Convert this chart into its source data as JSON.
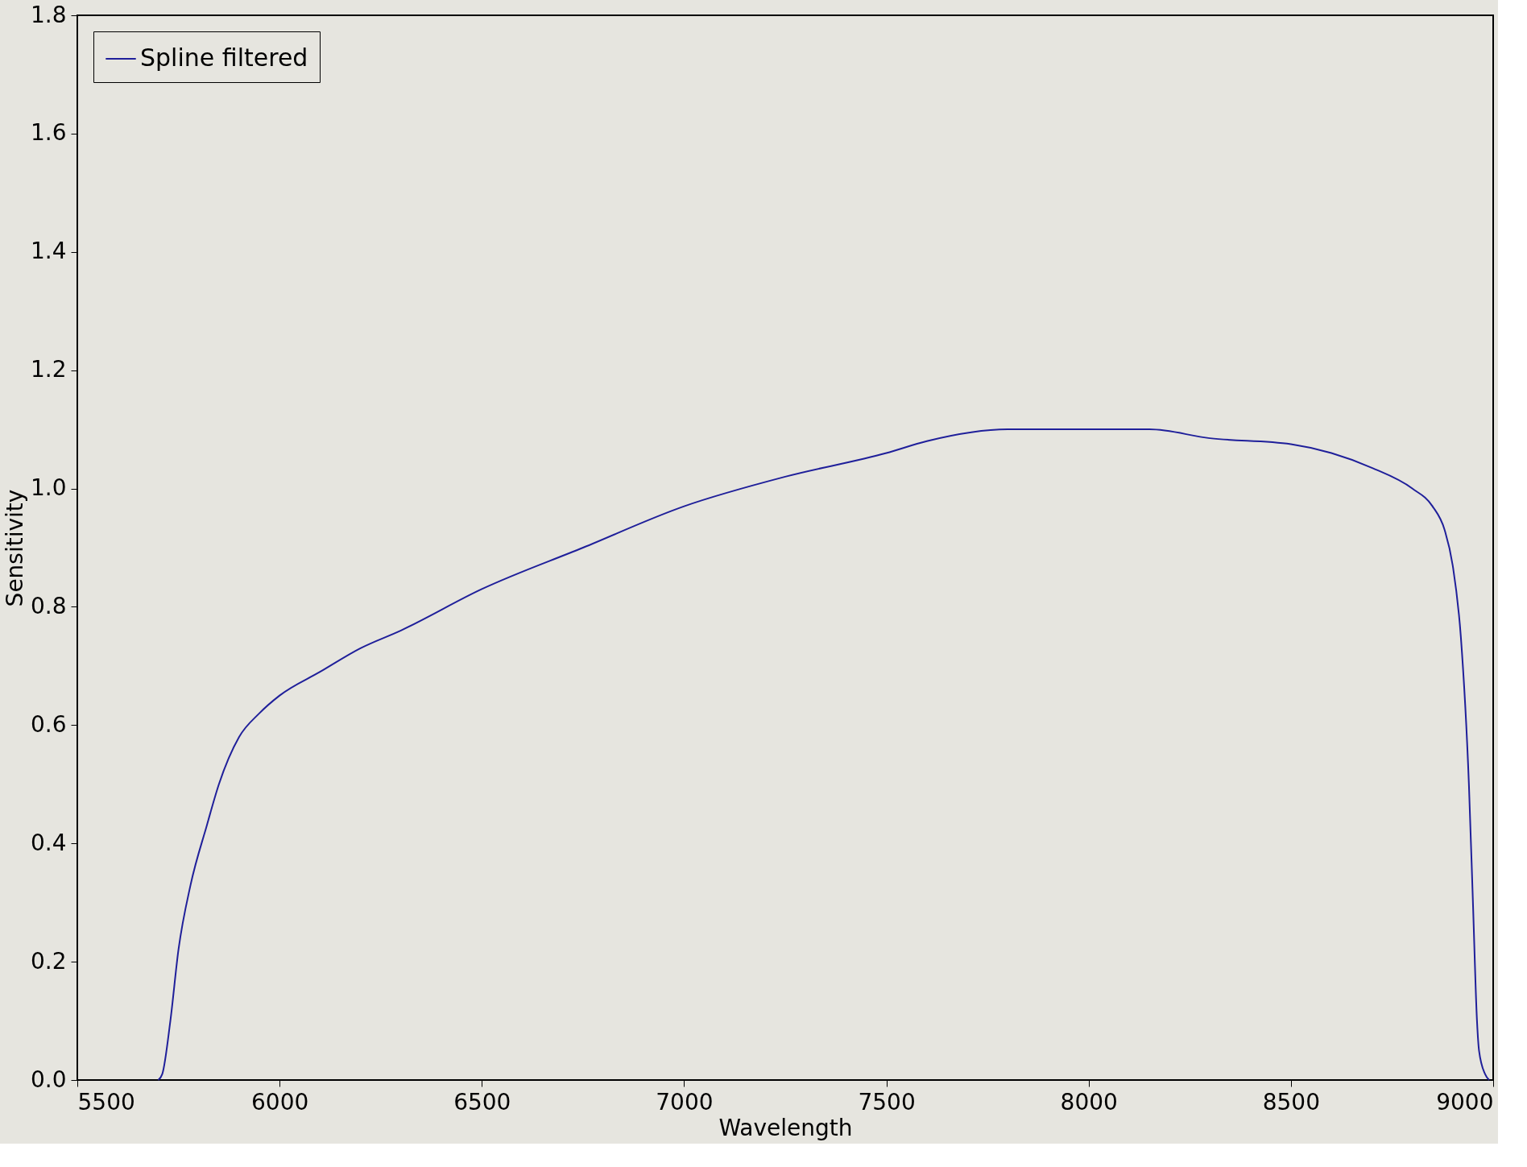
{
  "chart_data": {
    "type": "line",
    "xlabel": "Wavelength",
    "ylabel": "Sensitivity",
    "xlim": [
      5500,
      9000
    ],
    "ylim": [
      0,
      1.8
    ],
    "xticks": [
      5500,
      6000,
      6500,
      7000,
      7500,
      8000,
      8500,
      9000
    ],
    "yticks": [
      {
        "value": 0,
        "label": "0.0"
      },
      0.2,
      0.4,
      0.6,
      0.8,
      {
        "value": 1,
        "label": "1.0"
      },
      1.2,
      1.4,
      1.6,
      1.8
    ],
    "grid": false,
    "legend": "top left",
    "line_style": "solid",
    "marker": "none",
    "series": [
      {
        "name": "Spline filtered",
        "color": "#1f1f9a",
        "x": [
          5700,
          5710,
          5730,
          5750,
          5780,
          5820,
          5850,
          5900,
          5950,
          6000,
          6100,
          6200,
          6300,
          6500,
          6750,
          7000,
          7250,
          7500,
          7600,
          7800,
          8000,
          8150,
          8300,
          8500,
          8600,
          8700,
          8800,
          8850,
          8880,
          8900,
          8920,
          8940,
          8950,
          8960,
          8965,
          8980,
          8990
        ],
        "values": [
          0,
          0.01,
          0.1,
          0.22,
          0.33,
          0.43,
          0.5,
          0.58,
          0.62,
          0.65,
          0.69,
          0.73,
          0.76,
          0.83,
          0.9,
          0.97,
          1.02,
          1.06,
          1.08,
          1.1,
          1.1,
          1.1,
          1.085,
          1.075,
          1.06,
          1.035,
          1.0,
          0.97,
          0.93,
          0.87,
          0.75,
          0.5,
          0.3,
          0.1,
          0.05,
          0.01,
          0
        ]
      }
    ]
  }
}
